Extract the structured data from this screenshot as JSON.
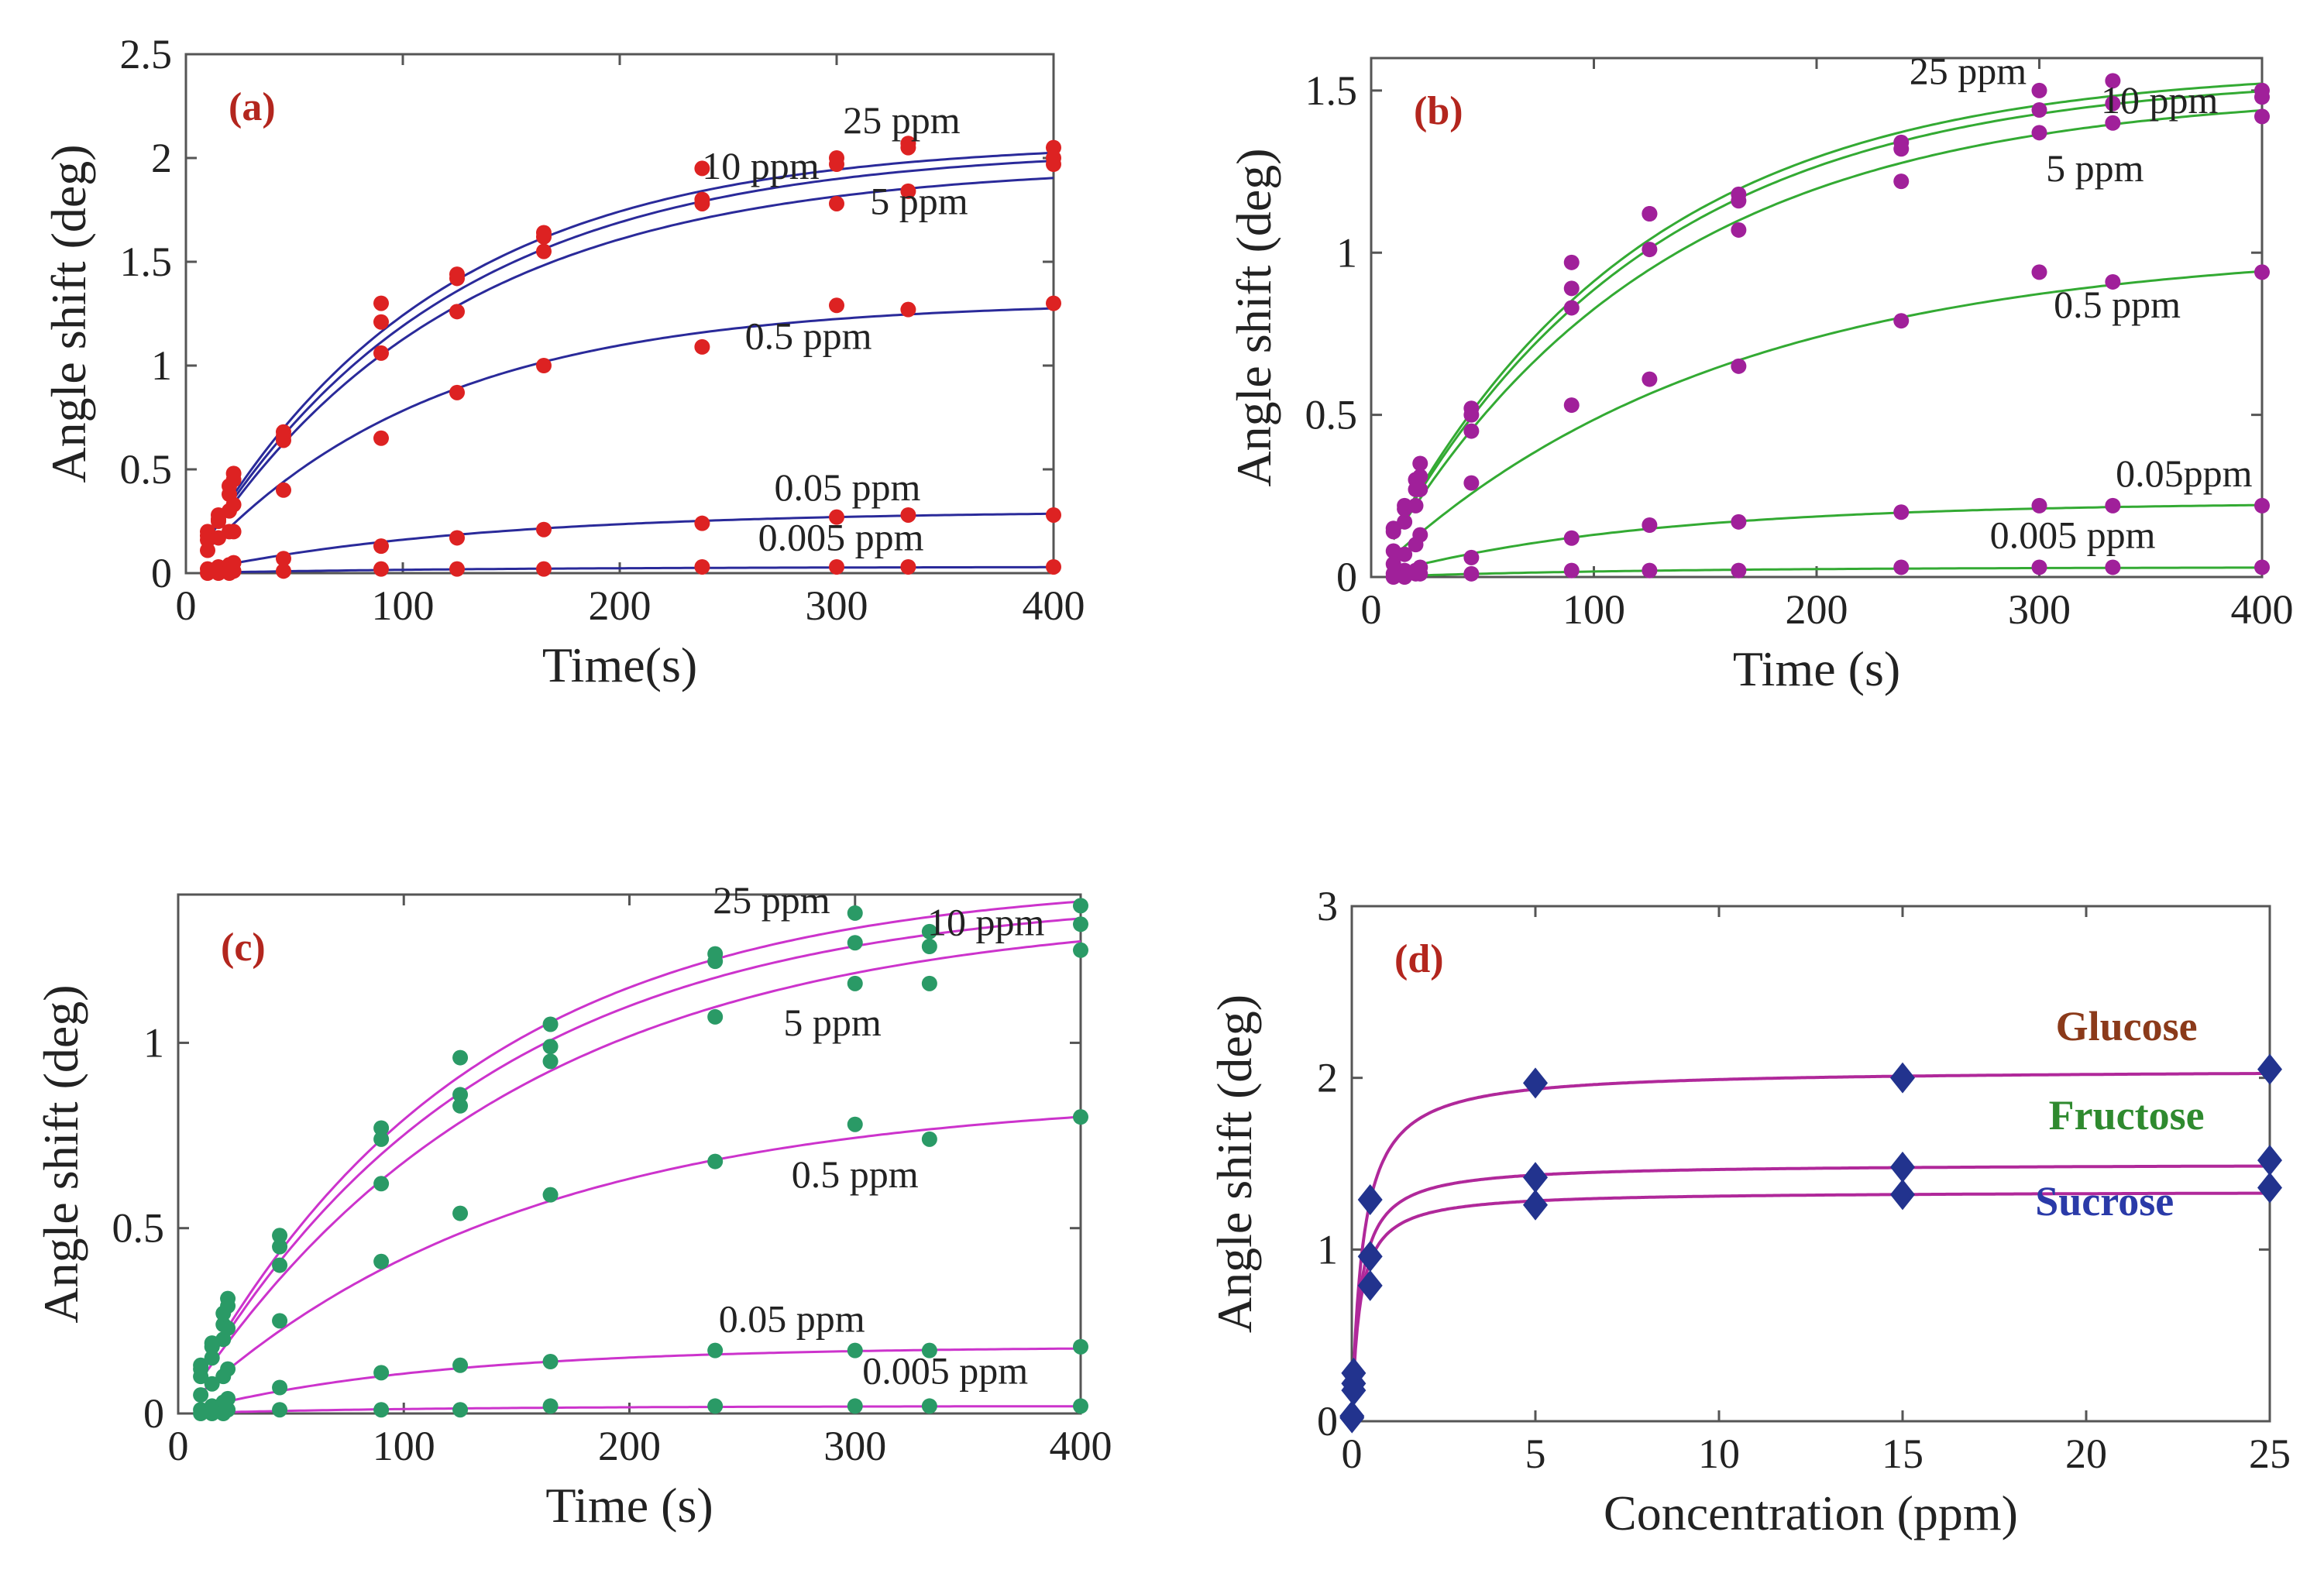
{
  "chart_data": [
    {
      "type": "scatter",
      "panel": "(a)",
      "xlabel": "Time(s)",
      "ylabel": "Angle shift (deg)",
      "xlim": [
        0,
        400
      ],
      "ylim": [
        0,
        2.5
      ],
      "xticks": [
        0,
        100,
        200,
        300,
        400
      ],
      "yticks": [
        0,
        0.5,
        1,
        1.5,
        2,
        2.5
      ],
      "ytick_labels": [
        "0",
        "0.5",
        "1",
        "1.5",
        "2",
        "2.5"
      ],
      "grid": false,
      "marker_color": "#dd2222",
      "fit_color": "#2a2a9a",
      "x": [
        10,
        15,
        20,
        22,
        45,
        90,
        125,
        165,
        238,
        300,
        333,
        400
      ],
      "series": [
        {
          "name": "25 ppm",
          "amplitude": 2.08,
          "tau": 110,
          "values": [
            0.2,
            0.28,
            0.42,
            0.48,
            0.68,
            1.3,
            1.44,
            1.64,
            1.95,
            2.0,
            2.07,
            2.05
          ]
        },
        {
          "name": "10 ppm",
          "amplitude": 2.05,
          "tau": 115,
          "values": [
            0.18,
            0.26,
            0.38,
            0.45,
            0.66,
            1.21,
            1.42,
            1.62,
            1.8,
            1.97,
            2.05,
            2.0
          ]
        },
        {
          "name": "5 ppm",
          "amplitude": 1.97,
          "tau": 118,
          "values": [
            0.16,
            0.25,
            0.3,
            0.33,
            0.64,
            1.06,
            1.26,
            1.55,
            1.78,
            1.78,
            1.84,
            1.97
          ]
        },
        {
          "name": "0.5 ppm",
          "amplitude": 1.31,
          "tau": 110,
          "values": [
            0.11,
            0.17,
            0.2,
            0.2,
            0.4,
            0.65,
            0.87,
            1.0,
            1.09,
            1.29,
            1.27,
            1.3
          ]
        },
        {
          "name": "0.05 ppm",
          "amplitude": 0.3,
          "tau": 130,
          "values": [
            0.02,
            0.03,
            0.04,
            0.05,
            0.07,
            0.13,
            0.17,
            0.21,
            0.24,
            0.27,
            0.28,
            0.28
          ]
        },
        {
          "name": "0.005 ppm",
          "amplitude": 0.03,
          "tau": 130,
          "values": [
            0.0,
            0.0,
            0.0,
            0.01,
            0.01,
            0.02,
            0.02,
            0.02,
            0.03,
            0.03,
            0.03,
            0.03
          ]
        }
      ],
      "label_positions": [
        {
          "name": "25 ppm",
          "x": 330,
          "y": 2.12
        },
        {
          "name": "10 ppm",
          "x": 265,
          "y": 1.9
        },
        {
          "name": "5 ppm",
          "x": 338,
          "y": 1.73
        },
        {
          "name": "0.5 ppm",
          "x": 287,
          "y": 1.08
        },
        {
          "name": "0.05 ppm",
          "x": 305,
          "y": 0.35
        },
        {
          "name": "0.005 ppm",
          "x": 302,
          "y": 0.11
        }
      ]
    },
    {
      "type": "scatter",
      "panel": "(b)",
      "xlabel": "Time (s)",
      "ylabel": "Angle shift (deg)",
      "xlim": [
        0,
        400
      ],
      "ylim": [
        0,
        1.6
      ],
      "xticks": [
        0,
        100,
        200,
        300,
        400
      ],
      "yticks": [
        0,
        0.5,
        1,
        1.5
      ],
      "ytick_labels": [
        "0",
        "0.5",
        "1",
        "1.5"
      ],
      "grid": false,
      "marker_color": "#a0209a",
      "fit_color": "#33aa33",
      "x": [
        10,
        15,
        20,
        22,
        45,
        90,
        125,
        165,
        238,
        300,
        333,
        400
      ],
      "series": [
        {
          "name": "25 ppm",
          "amplitude": 1.57,
          "tau": 115,
          "values": [
            0.15,
            0.22,
            0.3,
            0.35,
            0.52,
            0.97,
            1.12,
            1.18,
            1.34,
            1.5,
            1.53,
            1.5
          ]
        },
        {
          "name": "10 ppm",
          "amplitude": 1.55,
          "tau": 118,
          "values": [
            0.14,
            0.21,
            0.27,
            0.31,
            0.5,
            0.89,
            1.12,
            1.16,
            1.32,
            1.44,
            1.46,
            1.48
          ]
        },
        {
          "name": "5 ppm",
          "amplitude": 1.5,
          "tau": 125,
          "values": [
            0.08,
            0.17,
            0.22,
            0.27,
            0.45,
            0.83,
            1.01,
            1.07,
            1.22,
            1.37,
            1.4,
            1.42
          ]
        },
        {
          "name": "0.5 ppm",
          "amplitude": 1.02,
          "tau": 155,
          "values": [
            0.04,
            0.07,
            0.1,
            0.13,
            0.29,
            0.53,
            0.61,
            0.65,
            0.79,
            0.94,
            0.91,
            0.94
          ]
        },
        {
          "name": "0.05ppm",
          "amplitude": 0.23,
          "tau": 120,
          "values": [
            0.01,
            0.02,
            0.02,
            0.03,
            0.06,
            0.12,
            0.16,
            0.17,
            0.2,
            0.22,
            0.22,
            0.22
          ]
        },
        {
          "name": "0.005 ppm",
          "amplitude": 0.03,
          "tau": 120,
          "values": [
            0.0,
            0.0,
            0.01,
            0.01,
            0.01,
            0.02,
            0.02,
            0.02,
            0.03,
            0.03,
            0.03,
            0.03
          ]
        }
      ],
      "label_positions": [
        {
          "name": "25 ppm",
          "x": 268,
          "y": 1.52
        },
        {
          "name": "10 ppm",
          "x": 354,
          "y": 1.43
        },
        {
          "name": "5 ppm",
          "x": 325,
          "y": 1.22
        },
        {
          "name": "0.5 ppm",
          "x": 335,
          "y": 0.8
        },
        {
          "name": "0.05ppm",
          "x": 365,
          "y": 0.28
        },
        {
          "name": "0.005 ppm",
          "x": 315,
          "y": 0.09
        }
      ]
    },
    {
      "type": "scatter",
      "panel": "(c)",
      "xlabel": "Time (s)",
      "ylabel": "Angle shift (deg)",
      "xlim": [
        0,
        400
      ],
      "ylim": [
        0,
        1.4
      ],
      "xticks": [
        0,
        100,
        200,
        300,
        400
      ],
      "yticks": [
        0,
        0.5,
        1
      ],
      "ytick_labels": [
        "0",
        "0.5",
        "1"
      ],
      "grid": false,
      "marker_color": "#2a9a66",
      "fit_color": "#cc33cc",
      "x": [
        10,
        15,
        20,
        22,
        45,
        90,
        125,
        165,
        238,
        300,
        333,
        400
      ],
      "series": [
        {
          "name": "25 ppm",
          "amplitude": 1.44,
          "tau": 125,
          "values": [
            0.13,
            0.19,
            0.27,
            0.31,
            0.48,
            0.77,
            0.96,
            1.05,
            1.24,
            1.35,
            1.3,
            1.37
          ]
        },
        {
          "name": "10 ppm",
          "amplitude": 1.4,
          "tau": 130,
          "values": [
            0.12,
            0.18,
            0.24,
            0.29,
            0.45,
            0.74,
            0.86,
            0.99,
            1.22,
            1.27,
            1.26,
            1.32
          ]
        },
        {
          "name": "5 ppm",
          "amplitude": 1.36,
          "tau": 145,
          "values": [
            0.1,
            0.15,
            0.2,
            0.23,
            0.4,
            0.62,
            0.83,
            0.95,
            1.07,
            1.16,
            1.16,
            1.25
          ]
        },
        {
          "name": "0.5 ppm",
          "amplitude": 0.86,
          "tau": 150,
          "values": [
            0.05,
            0.08,
            0.1,
            0.12,
            0.25,
            0.41,
            0.54,
            0.59,
            0.68,
            0.78,
            0.74,
            0.8
          ]
        },
        {
          "name": "0.05 ppm",
          "amplitude": 0.18,
          "tau": 110,
          "values": [
            0.01,
            0.02,
            0.03,
            0.04,
            0.07,
            0.11,
            0.13,
            0.14,
            0.17,
            0.17,
            0.17,
            0.18
          ]
        },
        {
          "name": "0.005 ppm",
          "amplitude": 0.02,
          "tau": 110,
          "values": [
            0.0,
            0.0,
            0.0,
            0.01,
            0.01,
            0.01,
            0.01,
            0.02,
            0.02,
            0.02,
            0.02,
            0.02
          ]
        }
      ],
      "label_positions": [
        {
          "name": "25 ppm",
          "x": 263,
          "y": 1.35
        },
        {
          "name": "10 ppm",
          "x": 358,
          "y": 1.29
        },
        {
          "name": "5 ppm",
          "x": 290,
          "y": 1.02
        },
        {
          "name": "0.5 ppm",
          "x": 300,
          "y": 0.61
        },
        {
          "name": "0.05 ppm",
          "x": 272,
          "y": 0.22
        },
        {
          "name": "0.005 ppm",
          "x": 340,
          "y": 0.08
        }
      ]
    },
    {
      "type": "line",
      "panel": "(d)",
      "xlabel": "Concentration (ppm)",
      "ylabel": "Angle shift (deg)",
      "xlim": [
        0,
        25
      ],
      "ylim": [
        0,
        3
      ],
      "xticks": [
        0,
        5,
        10,
        15,
        20,
        25
      ],
      "yticks": [
        0,
        1,
        2,
        3
      ],
      "ytick_labels": [
        "0",
        "1",
        "2",
        "3"
      ],
      "grid": false,
      "marker": "diamond",
      "marker_color": "#22338e",
      "fit_color": "#b0289a",
      "x": [
        0.005,
        0.05,
        0.5,
        5,
        15,
        25
      ],
      "series": [
        {
          "name": "Glucose",
          "color": "#8b3a1a",
          "values": [
            0.03,
            0.28,
            1.29,
            1.97,
            2.0,
            2.05
          ],
          "fit_max": 2.05,
          "fit_k": 0.3
        },
        {
          "name": "Fructose",
          "color": "#2f8a2f",
          "values": [
            0.03,
            0.22,
            0.96,
            1.42,
            1.48,
            1.52
          ],
          "fit_max": 1.5,
          "fit_k": 0.23
        },
        {
          "name": "Sucrose",
          "color": "#2a3aa8",
          "values": [
            0.02,
            0.18,
            0.79,
            1.26,
            1.32,
            1.36
          ],
          "fit_max": 1.34,
          "fit_k": 0.22
        }
      ],
      "label_positions": [
        {
          "name": "Glucose",
          "x": 21.1,
          "y": 2.22
        },
        {
          "name": "Fructose",
          "x": 21.1,
          "y": 1.7
        },
        {
          "name": "Sucrose",
          "x": 20.5,
          "y": 1.2
        }
      ]
    }
  ]
}
